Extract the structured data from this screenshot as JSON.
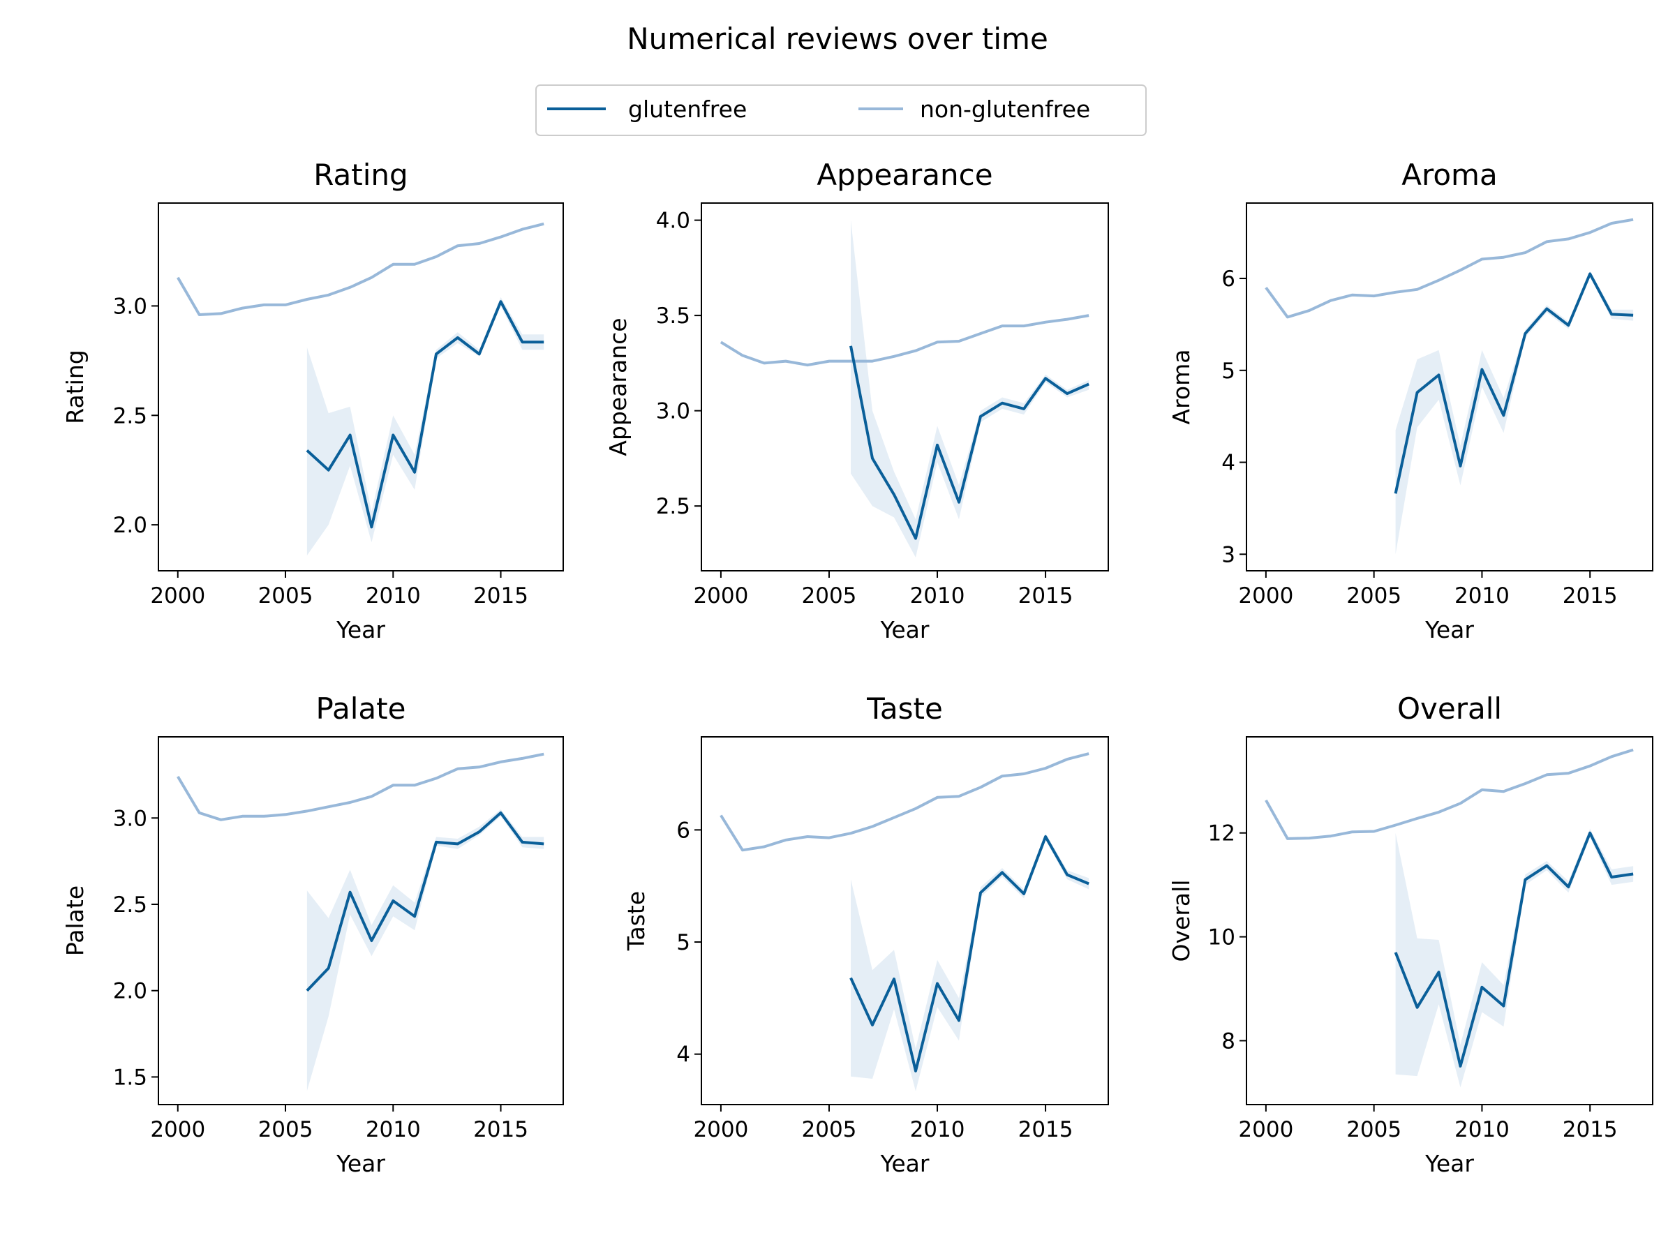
{
  "figure": {
    "title": "Numerical reviews over time"
  },
  "legend": {
    "items": [
      {
        "label": "glutenfree",
        "color": "#0a5f99"
      },
      {
        "label": "non-glutenfree",
        "color": "#98b8d9"
      }
    ]
  },
  "colors": {
    "glutenfree": "#0a5f99",
    "non_glutenfree": "#98b8d9",
    "band": "#b4cde4"
  },
  "chart_data": [
    {
      "type": "line",
      "title": "Rating",
      "xlabel": "Year",
      "ylabel": "Rating",
      "xlim": [
        1999.1,
        2017.9
      ],
      "ylim": [
        1.79,
        3.47
      ],
      "xticks": [
        2000,
        2005,
        2010,
        2015
      ],
      "yticks": [
        2.0,
        2.5,
        3.0
      ],
      "ytick_labels": [
        "2.0",
        "2.5",
        "3.0"
      ],
      "series": [
        {
          "name": "non-glutenfree",
          "x": [
            2000,
            2001,
            2002,
            2003,
            2004,
            2005,
            2006,
            2007,
            2008,
            2009,
            2010,
            2011,
            2012,
            2013,
            2014,
            2015,
            2016,
            2017
          ],
          "y": [
            3.13,
            2.96,
            2.965,
            2.99,
            3.005,
            3.005,
            3.03,
            3.05,
            3.085,
            3.13,
            3.19,
            3.19,
            3.225,
            3.275,
            3.285,
            3.315,
            3.35,
            3.375
          ]
        },
        {
          "name": "glutenfree",
          "x": [
            2006,
            2007,
            2008,
            2009,
            2010,
            2011,
            2012,
            2013,
            2014,
            2015,
            2016,
            2017
          ],
          "y": [
            2.34,
            2.25,
            2.41,
            1.99,
            2.41,
            2.24,
            2.78,
            2.855,
            2.78,
            3.02,
            2.835,
            2.835
          ],
          "ci_low": [
            1.86,
            2.0,
            2.27,
            1.92,
            2.32,
            2.16,
            2.76,
            2.83,
            2.77,
            3.0,
            2.8,
            2.8
          ],
          "ci_high": [
            2.81,
            2.51,
            2.54,
            2.06,
            2.5,
            2.32,
            2.8,
            2.88,
            2.8,
            3.04,
            2.87,
            2.87
          ]
        }
      ]
    },
    {
      "type": "line",
      "title": "Appearance",
      "xlabel": "Year",
      "ylabel": "Appearance",
      "xlim": [
        1999.1,
        2017.9
      ],
      "ylim": [
        2.16,
        4.09
      ],
      "xticks": [
        2000,
        2005,
        2010,
        2015
      ],
      "yticks": [
        2.5,
        3.0,
        3.5,
        4.0
      ],
      "ytick_labels": [
        "2.5",
        "3.0",
        "3.5",
        "4.0"
      ],
      "series": [
        {
          "name": "non-glutenfree",
          "x": [
            2000,
            2001,
            2002,
            2003,
            2004,
            2005,
            2006,
            2007,
            2008,
            2009,
            2010,
            2011,
            2012,
            2013,
            2014,
            2015,
            2016,
            2017
          ],
          "y": [
            3.36,
            3.29,
            3.25,
            3.26,
            3.24,
            3.26,
            3.26,
            3.26,
            3.285,
            3.315,
            3.36,
            3.365,
            3.405,
            3.445,
            3.445,
            3.465,
            3.48,
            3.5
          ]
        },
        {
          "name": "glutenfree",
          "x": [
            2006,
            2007,
            2008,
            2009,
            2010,
            2011,
            2012,
            2013,
            2014,
            2015,
            2016,
            2017
          ],
          "y": [
            3.34,
            2.75,
            2.56,
            2.33,
            2.82,
            2.52,
            2.97,
            3.04,
            3.01,
            3.17,
            3.09,
            3.14
          ],
          "ci_low": [
            2.67,
            2.5,
            2.44,
            2.23,
            2.73,
            2.43,
            2.94,
            3.01,
            2.98,
            3.15,
            3.07,
            3.11
          ],
          "ci_high": [
            4.0,
            3.0,
            2.68,
            2.43,
            2.92,
            2.61,
            3.0,
            3.07,
            3.04,
            3.19,
            3.11,
            3.16
          ]
        }
      ]
    },
    {
      "type": "line",
      "title": "Aroma",
      "xlabel": "Year",
      "ylabel": "Aroma",
      "xlim": [
        1999.1,
        2017.9
      ],
      "ylim": [
        2.82,
        6.82
      ],
      "xticks": [
        2000,
        2005,
        2010,
        2015
      ],
      "yticks": [
        3,
        4,
        5,
        6
      ],
      "ytick_labels": [
        "3",
        "4",
        "5",
        "6"
      ],
      "series": [
        {
          "name": "non-glutenfree",
          "x": [
            2000,
            2001,
            2002,
            2003,
            2004,
            2005,
            2006,
            2007,
            2008,
            2009,
            2010,
            2011,
            2012,
            2013,
            2014,
            2015,
            2016,
            2017
          ],
          "y": [
            5.9,
            5.58,
            5.65,
            5.76,
            5.82,
            5.81,
            5.85,
            5.88,
            5.98,
            6.09,
            6.21,
            6.23,
            6.28,
            6.4,
            6.43,
            6.5,
            6.6,
            6.64
          ]
        },
        {
          "name": "glutenfree",
          "x": [
            2006,
            2007,
            2008,
            2009,
            2010,
            2011,
            2012,
            2013,
            2014,
            2015,
            2016,
            2017
          ],
          "y": [
            3.66,
            4.76,
            4.95,
            3.96,
            5.01,
            4.51,
            5.4,
            5.67,
            5.49,
            6.05,
            5.61,
            5.6
          ],
          "ci_low": [
            3.0,
            4.38,
            4.68,
            3.75,
            4.82,
            4.32,
            5.36,
            5.63,
            5.45,
            6.02,
            5.56,
            5.54
          ],
          "ci_high": [
            4.35,
            5.12,
            5.22,
            4.18,
            5.22,
            4.7,
            5.44,
            5.71,
            5.53,
            6.08,
            5.66,
            5.66
          ]
        }
      ]
    },
    {
      "type": "line",
      "title": "Palate",
      "xlabel": "Year",
      "ylabel": "Palate",
      "xlim": [
        1999.1,
        2017.9
      ],
      "ylim": [
        1.34,
        3.47
      ],
      "xticks": [
        2000,
        2005,
        2010,
        2015
      ],
      "yticks": [
        1.5,
        2.0,
        2.5,
        3.0
      ],
      "ytick_labels": [
        "1.5",
        "2.0",
        "2.5",
        "3.0"
      ],
      "series": [
        {
          "name": "non-glutenfree",
          "x": [
            2000,
            2001,
            2002,
            2003,
            2004,
            2005,
            2006,
            2007,
            2008,
            2009,
            2010,
            2011,
            2012,
            2013,
            2014,
            2015,
            2016,
            2017
          ],
          "y": [
            3.24,
            3.03,
            2.99,
            3.01,
            3.01,
            3.02,
            3.04,
            3.065,
            3.09,
            3.125,
            3.19,
            3.19,
            3.23,
            3.285,
            3.295,
            3.325,
            3.345,
            3.37
          ]
        },
        {
          "name": "glutenfree",
          "x": [
            2006,
            2007,
            2008,
            2009,
            2010,
            2011,
            2012,
            2013,
            2014,
            2015,
            2016,
            2017
          ],
          "y": [
            2.0,
            2.13,
            2.57,
            2.29,
            2.52,
            2.43,
            2.86,
            2.85,
            2.92,
            3.03,
            2.86,
            2.85
          ],
          "ci_low": [
            1.42,
            1.85,
            2.44,
            2.2,
            2.43,
            2.35,
            2.84,
            2.82,
            2.9,
            3.01,
            2.83,
            2.82
          ],
          "ci_high": [
            2.58,
            2.42,
            2.7,
            2.38,
            2.61,
            2.51,
            2.89,
            2.88,
            2.95,
            3.05,
            2.89,
            2.89
          ]
        }
      ]
    },
    {
      "type": "line",
      "title": "Taste",
      "xlabel": "Year",
      "ylabel": "Taste",
      "xlim": [
        1999.1,
        2017.9
      ],
      "ylim": [
        3.55,
        6.83
      ],
      "xticks": [
        2000,
        2005,
        2010,
        2015
      ],
      "yticks": [
        4,
        5,
        6
      ],
      "ytick_labels": [
        "4",
        "5",
        "6"
      ],
      "series": [
        {
          "name": "non-glutenfree",
          "x": [
            2000,
            2001,
            2002,
            2003,
            2004,
            2005,
            2006,
            2007,
            2008,
            2009,
            2010,
            2011,
            2012,
            2013,
            2014,
            2015,
            2016,
            2017
          ],
          "y": [
            6.13,
            5.82,
            5.85,
            5.91,
            5.94,
            5.93,
            5.97,
            6.03,
            6.11,
            6.19,
            6.29,
            6.3,
            6.38,
            6.48,
            6.5,
            6.55,
            6.63,
            6.68
          ]
        },
        {
          "name": "glutenfree",
          "x": [
            2006,
            2007,
            2008,
            2009,
            2010,
            2011,
            2012,
            2013,
            2014,
            2015,
            2016,
            2017
          ],
          "y": [
            4.68,
            4.26,
            4.67,
            3.85,
            4.63,
            4.3,
            5.44,
            5.62,
            5.43,
            5.94,
            5.6,
            5.52
          ],
          "ci_low": [
            3.8,
            3.78,
            4.4,
            3.67,
            4.42,
            4.12,
            5.4,
            5.58,
            5.39,
            5.91,
            5.56,
            5.47
          ],
          "ci_high": [
            5.56,
            4.75,
            4.93,
            4.05,
            4.84,
            4.5,
            5.49,
            5.66,
            5.47,
            5.97,
            5.64,
            5.57
          ]
        }
      ]
    },
    {
      "type": "line",
      "title": "Overall",
      "xlabel": "Year",
      "ylabel": "Overall",
      "xlim": [
        1999.1,
        2017.9
      ],
      "ylim": [
        6.77,
        13.85
      ],
      "xticks": [
        2000,
        2005,
        2010,
        2015
      ],
      "yticks": [
        8,
        10,
        12
      ],
      "ytick_labels": [
        "8",
        "10",
        "12"
      ],
      "series": [
        {
          "name": "non-glutenfree",
          "x": [
            2000,
            2001,
            2002,
            2003,
            2004,
            2005,
            2006,
            2007,
            2008,
            2009,
            2010,
            2011,
            2012,
            2013,
            2014,
            2015,
            2016,
            2017
          ],
          "y": [
            12.63,
            11.89,
            11.9,
            11.94,
            12.02,
            12.03,
            12.15,
            12.28,
            12.4,
            12.57,
            12.83,
            12.8,
            12.95,
            13.12,
            13.15,
            13.29,
            13.47,
            13.6
          ]
        },
        {
          "name": "glutenfree",
          "x": [
            2006,
            2007,
            2008,
            2009,
            2010,
            2011,
            2012,
            2013,
            2014,
            2015,
            2016,
            2017
          ],
          "y": [
            9.7,
            8.64,
            9.32,
            7.51,
            9.03,
            8.67,
            11.1,
            11.37,
            10.96,
            12.0,
            11.15,
            11.21
          ],
          "ci_low": [
            7.35,
            7.32,
            8.7,
            7.1,
            8.55,
            8.27,
            11.0,
            11.28,
            10.85,
            11.92,
            11.0,
            11.06
          ],
          "ci_high": [
            12.0,
            9.97,
            9.94,
            7.92,
            9.51,
            9.07,
            11.2,
            11.46,
            11.07,
            12.08,
            11.3,
            11.36
          ]
        }
      ]
    }
  ]
}
